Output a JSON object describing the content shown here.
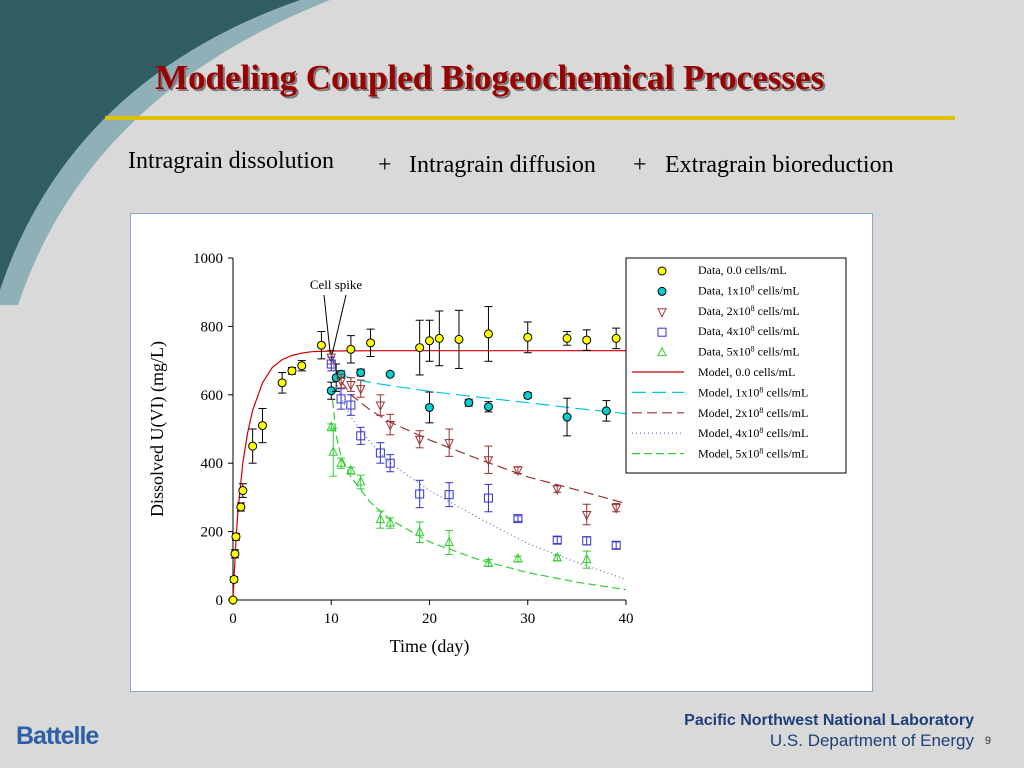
{
  "slide": {
    "title": "Modeling Coupled Biogeochemical Processes",
    "subtitle_part1": "Intragrain dissolution",
    "plus1": "+",
    "subtitle_part2": "Intragrain diffusion",
    "plus2": "+",
    "subtitle_part3": "Extragrain bioreduction",
    "footer_left": "Battelle",
    "footer_lab": "Pacific Northwest National Laboratory",
    "footer_doe": "U.S. Department of Energy",
    "page_number": "9"
  },
  "colors": {
    "title": "#990000",
    "rule": "#e0c000",
    "swoosh_dark": "#2f5d63",
    "swoosh_light": "#8fb0b6"
  },
  "chart_data": {
    "type": "scatter",
    "xlabel": "Time (day)",
    "ylabel": "Dissolved U(VI) (mg/L)",
    "xlim": [
      0,
      40
    ],
    "ylim": [
      0,
      1000
    ],
    "xticks": [
      0,
      10,
      20,
      30,
      40
    ],
    "yticks": [
      0,
      200,
      400,
      600,
      800,
      1000
    ],
    "grid": false,
    "legend_position": "top-right",
    "annotation": "Cell spike",
    "annotation_point": [
      10,
      720
    ],
    "series": [
      {
        "name": "Data, 0.0     cells/mL",
        "kind": "data",
        "marker": "circle",
        "fill": "#ffff00",
        "stroke": "#000000",
        "points": [
          {
            "x": 0,
            "y": 0,
            "e": 0
          },
          {
            "x": 0.1,
            "y": 60,
            "e": 8
          },
          {
            "x": 0.2,
            "y": 135,
            "e": 12
          },
          {
            "x": 0.3,
            "y": 185,
            "e": 10
          },
          {
            "x": 0.8,
            "y": 272,
            "e": 12
          },
          {
            "x": 1.0,
            "y": 320,
            "e": 20
          },
          {
            "x": 2.0,
            "y": 450,
            "e": 50
          },
          {
            "x": 3.0,
            "y": 510,
            "e": 50
          },
          {
            "x": 5.0,
            "y": 635,
            "e": 30
          },
          {
            "x": 6.0,
            "y": 670,
            "e": 10
          },
          {
            "x": 7.0,
            "y": 685,
            "e": 15
          },
          {
            "x": 9.0,
            "y": 745,
            "e": 40
          },
          {
            "x": 12.0,
            "y": 733,
            "e": 40
          },
          {
            "x": 14.0,
            "y": 752,
            "e": 40
          },
          {
            "x": 19.0,
            "y": 738,
            "e": 80
          },
          {
            "x": 20.0,
            "y": 758,
            "e": 60
          },
          {
            "x": 21.0,
            "y": 765,
            "e": 80
          },
          {
            "x": 23.0,
            "y": 762,
            "e": 85
          },
          {
            "x": 26.0,
            "y": 778,
            "e": 80
          },
          {
            "x": 30.0,
            "y": 768,
            "e": 45
          },
          {
            "x": 34.0,
            "y": 765,
            "e": 20
          },
          {
            "x": 36.0,
            "y": 760,
            "e": 30
          },
          {
            "x": 39.0,
            "y": 765,
            "e": 30
          }
        ]
      },
      {
        "name": "Data, 1x10^8 cells/mL",
        "kind": "data",
        "marker": "circle",
        "fill": "#00d0d0",
        "stroke": "#000000",
        "points": [
          {
            "x": 10.0,
            "y": 612,
            "e": 25
          },
          {
            "x": 10.5,
            "y": 650,
            "e": 40
          },
          {
            "x": 11.0,
            "y": 660,
            "e": 10
          },
          {
            "x": 13.0,
            "y": 665,
            "e": 10
          },
          {
            "x": 16.0,
            "y": 660,
            "e": 5
          },
          {
            "x": 20.0,
            "y": 563,
            "e": 45
          },
          {
            "x": 24.0,
            "y": 577,
            "e": 10
          },
          {
            "x": 26.0,
            "y": 565,
            "e": 15
          },
          {
            "x": 30.0,
            "y": 598,
            "e": 8
          },
          {
            "x": 34.0,
            "y": 535,
            "e": 55
          },
          {
            "x": 38.0,
            "y": 553,
            "e": 30
          }
        ]
      },
      {
        "name": "Data, 2x10^8 cells/mL",
        "kind": "data",
        "marker": "triangle-down",
        "fill": "none",
        "stroke": "#993333",
        "points": [
          {
            "x": 10.0,
            "y": 710,
            "e": 20
          },
          {
            "x": 11.0,
            "y": 640,
            "e": 20
          },
          {
            "x": 12.0,
            "y": 630,
            "e": 20
          },
          {
            "x": 13.0,
            "y": 618,
            "e": 25
          },
          {
            "x": 15.0,
            "y": 570,
            "e": 30
          },
          {
            "x": 16.0,
            "y": 513,
            "e": 30
          },
          {
            "x": 19.0,
            "y": 470,
            "e": 25
          },
          {
            "x": 22.0,
            "y": 460,
            "e": 40
          },
          {
            "x": 26.0,
            "y": 410,
            "e": 40
          },
          {
            "x": 29.0,
            "y": 380,
            "e": 10
          },
          {
            "x": 33.0,
            "y": 325,
            "e": 10
          },
          {
            "x": 36.0,
            "y": 250,
            "e": 30
          },
          {
            "x": 39.0,
            "y": 270,
            "e": 12
          }
        ]
      },
      {
        "name": "Data, 4x10^8 cells/mL",
        "kind": "data",
        "marker": "square",
        "fill": "none",
        "stroke": "#3333cc",
        "points": [
          {
            "x": 10.0,
            "y": 690,
            "e": 20
          },
          {
            "x": 11.0,
            "y": 588,
            "e": 30
          },
          {
            "x": 12.0,
            "y": 570,
            "e": 30
          },
          {
            "x": 13.0,
            "y": 480,
            "e": 25
          },
          {
            "x": 15.0,
            "y": 430,
            "e": 30
          },
          {
            "x": 16.0,
            "y": 400,
            "e": 25
          },
          {
            "x": 19.0,
            "y": 310,
            "e": 40
          },
          {
            "x": 22.0,
            "y": 308,
            "e": 35
          },
          {
            "x": 26.0,
            "y": 298,
            "e": 40
          },
          {
            "x": 29.0,
            "y": 238,
            "e": 8
          },
          {
            "x": 33.0,
            "y": 175,
            "e": 10
          },
          {
            "x": 36.0,
            "y": 173,
            "e": 12
          },
          {
            "x": 39.0,
            "y": 160,
            "e": 10
          }
        ]
      },
      {
        "name": "Data, 5x10^8 cells/mL",
        "kind": "data",
        "marker": "triangle-up",
        "fill": "none",
        "stroke": "#33cc33",
        "points": [
          {
            "x": 10.0,
            "y": 505,
            "e": 10
          },
          {
            "x": 10.2,
            "y": 432,
            "e": 70
          },
          {
            "x": 11.0,
            "y": 400,
            "e": 15
          },
          {
            "x": 12.0,
            "y": 378,
            "e": 10
          },
          {
            "x": 13.0,
            "y": 345,
            "e": 20
          },
          {
            "x": 15.0,
            "y": 235,
            "e": 25
          },
          {
            "x": 16.0,
            "y": 225,
            "e": 15
          },
          {
            "x": 19.0,
            "y": 198,
            "e": 30
          },
          {
            "x": 22.0,
            "y": 168,
            "e": 35
          },
          {
            "x": 26.0,
            "y": 108,
            "e": 10
          },
          {
            "x": 29.0,
            "y": 120,
            "e": 8
          },
          {
            "x": 33.0,
            "y": 123,
            "e": 8
          },
          {
            "x": 36.0,
            "y": 118,
            "e": 25
          }
        ]
      },
      {
        "name": "Model, 0.0     cells/mL",
        "kind": "model",
        "stroke": "#cc0000",
        "dash": "",
        "x": [
          0,
          0.25,
          0.5,
          1,
          1.5,
          2,
          3,
          4,
          5,
          6,
          7,
          8,
          10,
          15,
          20,
          30,
          40
        ],
        "y": [
          0,
          150,
          260,
          400,
          490,
          555,
          635,
          680,
          703,
          715,
          722,
          726,
          728,
          729,
          729,
          729,
          729
        ]
      },
      {
        "name": "Model, 1x10^8 cells/mL",
        "kind": "model",
        "stroke": "#00c8e0",
        "dash": "14,6",
        "x": [
          10,
          10.5,
          11,
          12,
          14,
          16,
          20,
          25,
          30,
          35,
          40
        ],
        "y": [
          720,
          680,
          660,
          648,
          636,
          627,
          610,
          593,
          577,
          560,
          545
        ]
      },
      {
        "name": "Model, 2x10^8 cells/mL",
        "kind": "model",
        "stroke": "#993333",
        "dash": "10,5",
        "x": [
          10,
          10.5,
          11,
          12,
          14,
          16,
          20,
          25,
          30,
          35,
          40
        ],
        "y": [
          720,
          670,
          640,
          600,
          555,
          520,
          468,
          412,
          360,
          322,
          282
        ]
      },
      {
        "name": "Model, 4x10^8 cells/mL",
        "kind": "model",
        "stroke": "#6666cc",
        "dash": "1,3",
        "x": [
          10,
          10.5,
          11,
          12,
          14,
          16,
          20,
          25,
          30,
          35,
          40
        ],
        "y": [
          720,
          640,
          590,
          535,
          460,
          400,
          320,
          240,
          165,
          110,
          60
        ]
      },
      {
        "name": "Model, 5x10^8 cells/mL",
        "kind": "model",
        "stroke": "#33cc33",
        "dash": "8,4",
        "x": [
          10,
          10.5,
          11,
          12,
          14,
          16,
          20,
          25,
          30,
          35,
          40
        ],
        "y": [
          620,
          480,
          420,
          360,
          285,
          235,
          170,
          118,
          80,
          52,
          30
        ]
      }
    ]
  }
}
